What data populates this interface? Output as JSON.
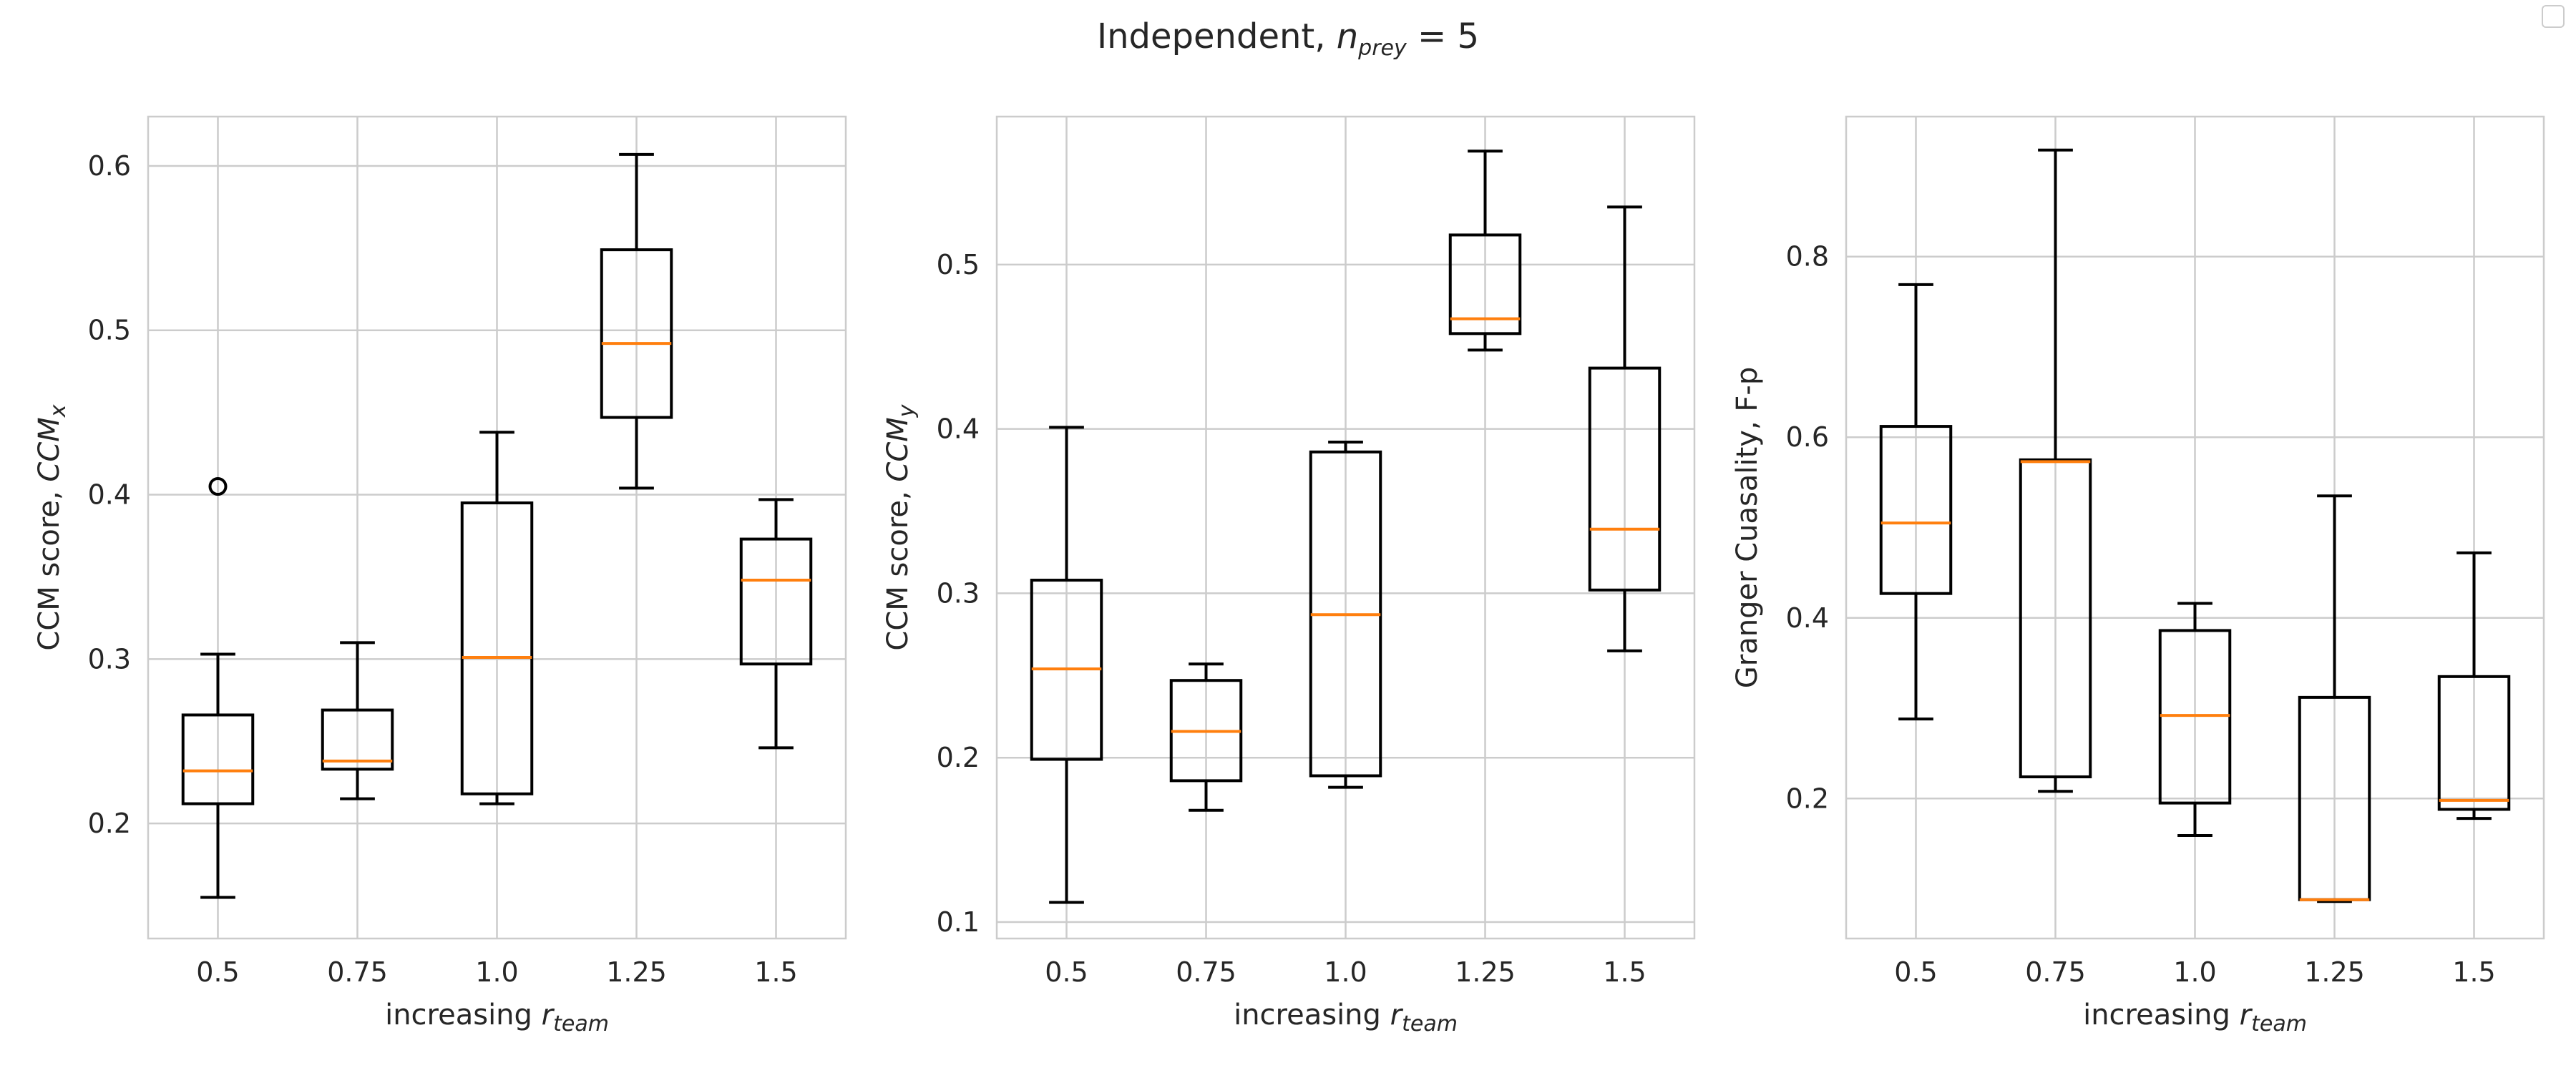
{
  "figure": {
    "title_prefix": "Independent, ",
    "title_var": "n",
    "title_sub": "prey",
    "title_rest": " = 5"
  },
  "chart_data": [
    {
      "type": "box",
      "categories": [
        "0.5",
        "0.75",
        "1.0",
        "1.25",
        "1.5"
      ],
      "xlabel": {
        "prefix": "increasing ",
        "var": "r",
        "sub": "team"
      },
      "ylabel": {
        "prefix": "CCM score, ",
        "var": "CCM",
        "sub": "x"
      },
      "ylim": [
        0.13,
        0.63
      ],
      "yticks": [
        0.2,
        0.3,
        0.4,
        0.5,
        0.6
      ],
      "ytick_labels": [
        "0.2",
        "0.3",
        "0.4",
        "0.5",
        "0.6"
      ],
      "grid": true,
      "boxes": [
        {
          "whislo": 0.155,
          "q1": 0.212,
          "med": 0.232,
          "q3": 0.266,
          "whishi": 0.303,
          "fliers": [
            0.405
          ]
        },
        {
          "whislo": 0.215,
          "q1": 0.233,
          "med": 0.238,
          "q3": 0.269,
          "whishi": 0.31,
          "fliers": []
        },
        {
          "whislo": 0.212,
          "q1": 0.218,
          "med": 0.301,
          "q3": 0.395,
          "whishi": 0.438,
          "fliers": []
        },
        {
          "whislo": 0.404,
          "q1": 0.447,
          "med": 0.492,
          "q3": 0.549,
          "whishi": 0.607,
          "fliers": []
        },
        {
          "whislo": 0.246,
          "q1": 0.297,
          "med": 0.348,
          "q3": 0.373,
          "whishi": 0.397,
          "fliers": []
        }
      ]
    },
    {
      "type": "box",
      "categories": [
        "0.5",
        "0.75",
        "1.0",
        "1.25",
        "1.5"
      ],
      "xlabel": {
        "prefix": "increasing ",
        "var": "r",
        "sub": "team"
      },
      "ylabel": {
        "prefix": "CCM score, ",
        "var": "CCM",
        "sub": "y"
      },
      "ylim": [
        0.09,
        0.59
      ],
      "yticks": [
        0.1,
        0.2,
        0.3,
        0.4,
        0.5
      ],
      "ytick_labels": [
        "0.1",
        "0.2",
        "0.3",
        "0.4",
        "0.5"
      ],
      "grid": true,
      "boxes": [
        {
          "whislo": 0.112,
          "q1": 0.199,
          "med": 0.254,
          "q3": 0.308,
          "whishi": 0.401,
          "fliers": []
        },
        {
          "whislo": 0.168,
          "q1": 0.186,
          "med": 0.216,
          "q3": 0.247,
          "whishi": 0.257,
          "fliers": []
        },
        {
          "whislo": 0.182,
          "q1": 0.189,
          "med": 0.287,
          "q3": 0.386,
          "whishi": 0.392,
          "fliers": []
        },
        {
          "whislo": 0.448,
          "q1": 0.458,
          "med": 0.467,
          "q3": 0.518,
          "whishi": 0.569,
          "fliers": []
        },
        {
          "whislo": 0.265,
          "q1": 0.302,
          "med": 0.339,
          "q3": 0.437,
          "whishi": 0.535,
          "fliers": []
        }
      ]
    },
    {
      "type": "box",
      "categories": [
        "0.5",
        "0.75",
        "1.0",
        "1.25",
        "1.5"
      ],
      "xlabel": {
        "prefix": "increasing ",
        "var": "r",
        "sub": "team"
      },
      "ylabel": {
        "prefix": "Granger Cuasality, F-p",
        "var": "",
        "sub": ""
      },
      "ylim": [
        0.045,
        0.955
      ],
      "yticks": [
        0.2,
        0.4,
        0.6,
        0.8
      ],
      "ytick_labels": [
        "0.2",
        "0.4",
        "0.6",
        "0.8"
      ],
      "grid": true,
      "boxes": [
        {
          "whislo": 0.288,
          "q1": 0.427,
          "med": 0.505,
          "q3": 0.612,
          "whishi": 0.769,
          "fliers": []
        },
        {
          "whislo": 0.208,
          "q1": 0.224,
          "med": 0.573,
          "q3": 0.575,
          "whishi": 0.918,
          "fliers": []
        },
        {
          "whislo": 0.159,
          "q1": 0.195,
          "med": 0.292,
          "q3": 0.386,
          "whishi": 0.416,
          "fliers": []
        },
        {
          "whislo": 0.086,
          "q1": 0.088,
          "med": 0.088,
          "q3": 0.312,
          "whishi": 0.535,
          "fliers": []
        },
        {
          "whislo": 0.178,
          "q1": 0.188,
          "med": 0.198,
          "q3": 0.335,
          "whishi": 0.472,
          "fliers": []
        }
      ]
    }
  ],
  "colors": {
    "box": "#000000",
    "median": "#ff7f0e",
    "grid": "#cccccc",
    "spine": "#cccccc",
    "text": "#262626"
  }
}
